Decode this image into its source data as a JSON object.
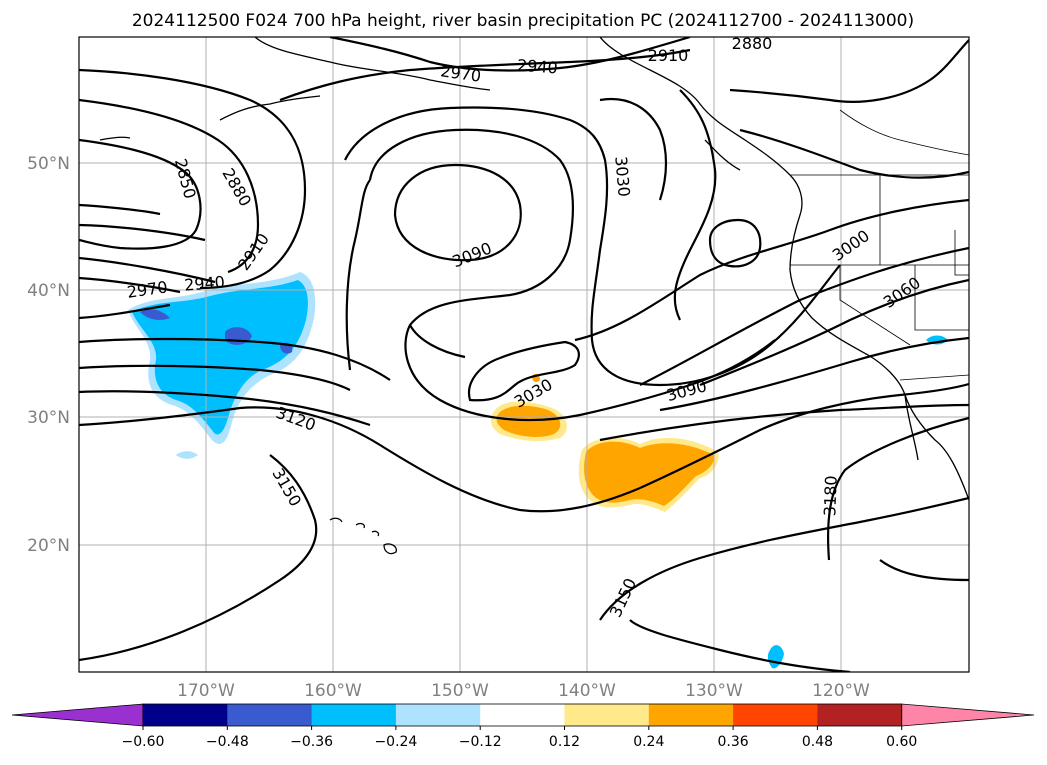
{
  "title": "2024112500 F024 700 hPa height, river basin precipitation PC (2024112700 - 2024113000)",
  "lat_labels": [
    "50°N",
    "40°N",
    "30°N",
    "20°N"
  ],
  "lon_labels": [
    "170°W",
    "160°W",
    "150°W",
    "140°W",
    "130°W",
    "120°W"
  ],
  "contour_labels": [
    "2880",
    "2910",
    "2970",
    "2940",
    "2850",
    "2880",
    "2910",
    "2970",
    "2940",
    "3030",
    "3090",
    "3000",
    "3060",
    "3030",
    "3090",
    "3120",
    "3150",
    "3180",
    "3150"
  ],
  "colorbar": {
    "tick_labels": [
      "−0.60",
      "−0.48",
      "−0.36",
      "−0.24",
      "−0.12",
      "0.12",
      "0.24",
      "0.36",
      "0.48",
      "0.60"
    ],
    "colors": [
      "#9b30d0",
      "#00008b",
      "#3a5bd0",
      "#00bfff",
      "#aee3ff",
      "#ffffff",
      "#ffe98a",
      "#ffa500",
      "#ff4500",
      "#b22222",
      "#ff85a8"
    ]
  },
  "colors": {
    "negative_strong": "#3a5bd0",
    "negative_mid": "#00bfff",
    "negative_light": "#aee3ff",
    "positive_mid": "#ffa500",
    "positive_light": "#ffe98a",
    "grid": "#b0b0b0"
  }
}
